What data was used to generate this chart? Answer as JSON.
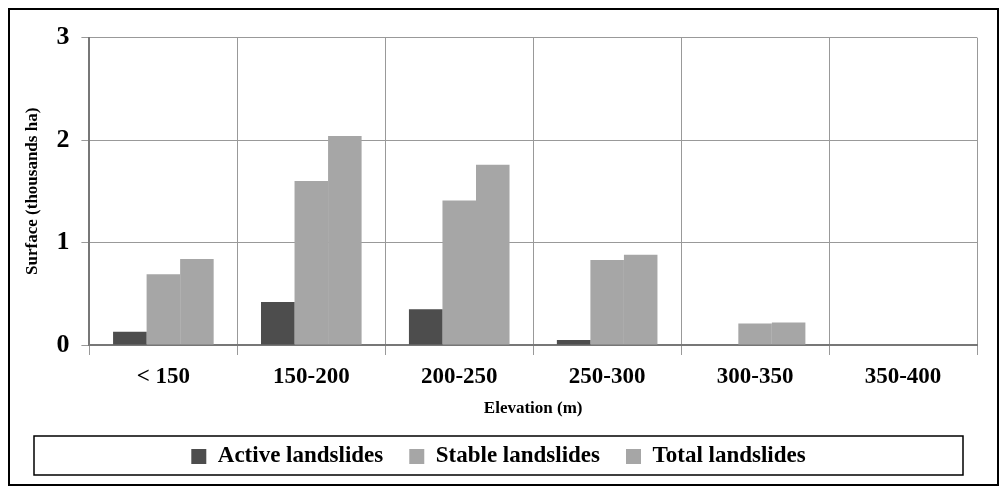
{
  "chart_data": {
    "type": "bar",
    "xlabel": "Elevation (m)",
    "ylabel": "Surface (thousands ha)",
    "categories": [
      "< 150",
      "150-200",
      "200-250",
      "250-300",
      "300-350",
      "350-400"
    ],
    "series": [
      {
        "name": "Active landslides",
        "color": "#4d4d4d",
        "values": [
          0.13,
          0.42,
          0.35,
          0.05,
          0,
          0
        ]
      },
      {
        "name": "Stable landslides",
        "color": "#a6a6a6",
        "values": [
          0.69,
          1.6,
          1.41,
          0.83,
          0.21,
          0
        ]
      },
      {
        "name": "Total landslides",
        "color": "#a6a6a6",
        "values": [
          0.84,
          2.04,
          1.76,
          0.88,
          0.22,
          0
        ]
      }
    ],
    "ylim": [
      0,
      3
    ],
    "yticks": [
      0,
      1,
      2,
      3
    ],
    "grid": true,
    "legend": "bottom"
  }
}
